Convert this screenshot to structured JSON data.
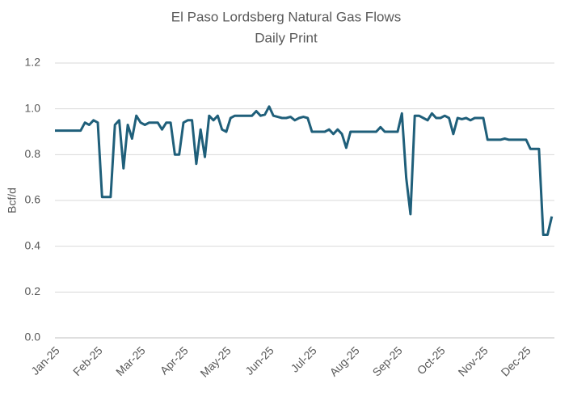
{
  "chart_data": {
    "type": "line",
    "title": "El Paso Lordsberg Natural Gas Flows",
    "subtitle": "Daily Print",
    "y_label": "Bcf/d",
    "categories": [
      "Jan-25",
      null,
      null,
      null,
      null,
      null,
      null,
      null,
      null,
      null,
      "Feb-25",
      null,
      null,
      null,
      null,
      null,
      null,
      null,
      null,
      null,
      "Mar-25",
      null,
      null,
      null,
      null,
      null,
      null,
      null,
      null,
      null,
      "Apr-25",
      null,
      null,
      null,
      null,
      null,
      null,
      null,
      null,
      null,
      "May-25",
      null,
      null,
      null,
      null,
      null,
      null,
      null,
      null,
      null,
      "Jun-25",
      null,
      null,
      null,
      null,
      null,
      null,
      null,
      null,
      null,
      "Jul-25",
      null,
      null,
      null,
      null,
      null,
      null,
      null,
      null,
      null,
      "Aug-25",
      null,
      null,
      null,
      null,
      null,
      null,
      null,
      null,
      null,
      "Sep-25",
      null,
      null,
      null,
      null,
      null,
      null,
      null,
      null,
      null,
      "Oct-25",
      null,
      null,
      null,
      null,
      null,
      null,
      null,
      null,
      null,
      "Nov-25",
      null,
      null,
      null,
      null,
      null,
      null,
      null,
      null,
      null,
      "Dec-25",
      null,
      null,
      null,
      null,
      null,
      null
    ],
    "series": [
      {
        "name": "Bcf/d",
        "color": "#1f5f7a",
        "values": [
          0.905,
          0.905,
          0.905,
          0.905,
          0.905,
          0.905,
          0.905,
          0.94,
          0.93,
          0.95,
          0.94,
          0.615,
          0.615,
          0.615,
          0.93,
          0.95,
          0.74,
          0.93,
          0.87,
          0.97,
          0.94,
          0.93,
          0.94,
          0.94,
          0.94,
          0.91,
          0.94,
          0.94,
          0.8,
          0.8,
          0.94,
          0.95,
          0.95,
          0.76,
          0.91,
          0.79,
          0.97,
          0.95,
          0.97,
          0.91,
          0.9,
          0.96,
          0.97,
          0.97,
          0.97,
          0.97,
          0.97,
          0.99,
          0.97,
          0.975,
          1.01,
          0.97,
          0.965,
          0.96,
          0.96,
          0.965,
          0.95,
          0.96,
          0.965,
          0.96,
          0.9,
          0.9,
          0.9,
          0.9,
          0.91,
          0.89,
          0.91,
          0.89,
          0.83,
          0.9,
          0.9,
          0.9,
          0.9,
          0.9,
          0.9,
          0.9,
          0.92,
          0.9,
          0.9,
          0.9,
          0.9,
          0.98,
          0.7,
          0.54,
          0.97,
          0.97,
          0.96,
          0.95,
          0.98,
          0.96,
          0.96,
          0.97,
          0.96,
          0.89,
          0.96,
          0.955,
          0.96,
          0.95,
          0.96,
          0.96,
          0.96,
          0.865,
          0.865,
          0.865,
          0.865,
          0.87,
          0.865,
          0.865,
          0.865,
          0.865,
          0.865,
          0.825,
          0.825,
          0.825,
          0.45,
          0.45,
          0.53
        ]
      }
    ],
    "ylim": [
      0,
      1.2
    ],
    "yticks": [
      {
        "value": 0,
        "label": "0.0"
      },
      0.2,
      0.4,
      0.6,
      0.8,
      {
        "value": 1,
        "label": "1.0"
      },
      1.2
    ],
    "grid": true
  }
}
